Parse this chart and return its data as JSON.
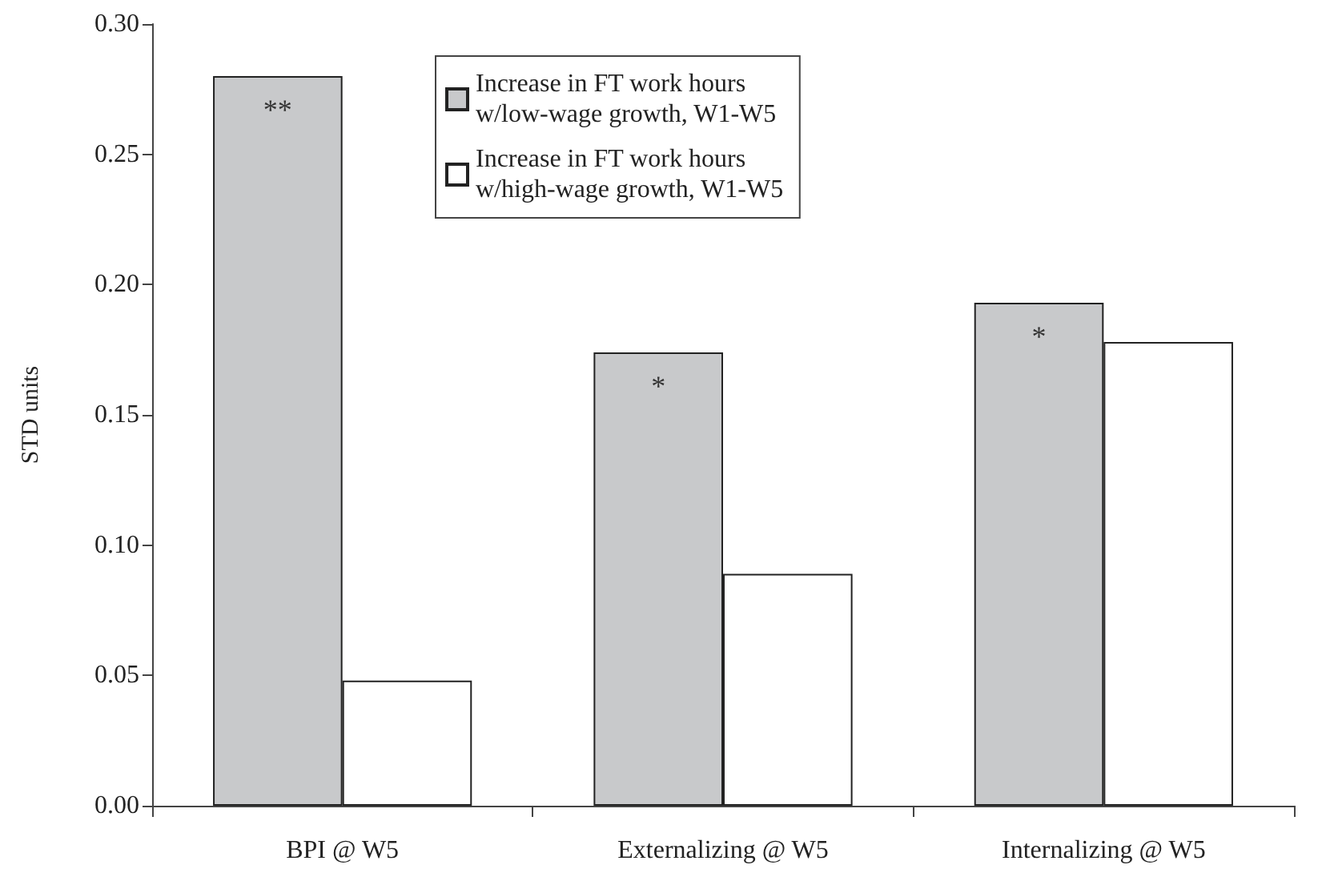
{
  "chart_data": {
    "type": "bar",
    "ylabel": "STD units",
    "categories": [
      "BPI @ W5",
      "Externalizing @ W5",
      "Internalizing @ W5"
    ],
    "series": [
      {
        "name": "Increase in FT work hours w/low-wage growth, W1-W5",
        "color": "#c8c9cb",
        "values": [
          0.28,
          0.174,
          0.193
        ]
      },
      {
        "name": "Increase in FT work hours w/high-wage growth, W1-W5",
        "color": "#ffffff",
        "values": [
          0.048,
          0.089,
          0.178
        ]
      }
    ],
    "ylim": [
      0,
      0.3
    ],
    "yticks": [
      {
        "value": 0,
        "label": "0.00"
      },
      {
        "value": 0.05,
        "label": "0.05"
      },
      {
        "value": 0.1,
        "label": "0.10"
      },
      {
        "value": 0.15,
        "label": "0.15"
      },
      {
        "value": 0.2,
        "label": "0.20"
      },
      {
        "value": 0.25,
        "label": "0.25"
      },
      {
        "value": 0.3,
        "label": "0.30"
      }
    ],
    "grid": false,
    "legend": "top",
    "annotations": [
      {
        "text": "**",
        "x": "BPI @ W5",
        "y": 0.28
      },
      {
        "text": "*",
        "x": "Externalizing @ W5",
        "y": 0.174
      },
      {
        "text": "*",
        "x": "Internalizing @ W5",
        "y": 0.193
      }
    ]
  }
}
